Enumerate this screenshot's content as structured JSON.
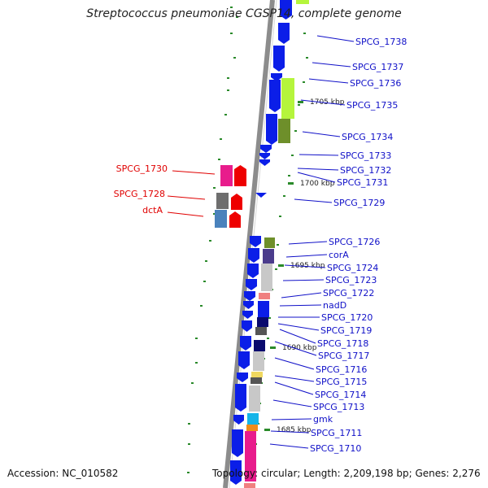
{
  "title": "Streptococcus pneumoniae CGSP14, complete genome",
  "accession": "Accession: NC_010582",
  "topology": "Topology: circular; Length: 2,209,198 bp; Genes: 2,276",
  "colors": {
    "backbone": "#8c8c8c",
    "forward_gene": "#0b1ee8",
    "reverse_label": "#e00000",
    "forward_label": "#1010c8",
    "tick": "#2a8a2a",
    "lime": "#b5f53c",
    "olive": "#6e8f2a",
    "magenta": "#e81c8c",
    "pink": "#ff6aa8",
    "red": "#ee0000",
    "grey": "#6e6e6e",
    "lightgrey": "#c8c8c8",
    "steelblue": "#4a82bc",
    "purple": "#4b3c8c",
    "navy": "#0a0a6e",
    "darkgrey": "#555555",
    "yellow": "#f0d860",
    "cyan": "#14b4e8",
    "orange": "#f08c1a",
    "salmon": "#f08080"
  },
  "scale_labels": [
    "1705 kbp",
    "1700 kbp",
    "1695 kbp",
    "1690 kbp",
    "1685 kbp"
  ],
  "forward_labels": [
    "SPCG_1738",
    "SPCG_1737",
    "SPCG_1736",
    "SPCG_1735",
    "SPCG_1734",
    "SPCG_1733",
    "SPCG_1732",
    "SPCG_1731",
    "SPCG_1729",
    "SPCG_1726",
    "corA",
    "SPCG_1724",
    "SPCG_1723",
    "SPCG_1722",
    "nadD",
    "SPCG_1720",
    "SPCG_1719",
    "SPCG_1718",
    "SPCG_1717",
    "SPCG_1716",
    "SPCG_1715",
    "SPCG_1714",
    "SPCG_1713",
    "gmk",
    "SPCG_1711",
    "SPCG_1710"
  ],
  "reverse_labels": [
    "SPCG_1730",
    "SPCG_1728",
    "dctA"
  ]
}
